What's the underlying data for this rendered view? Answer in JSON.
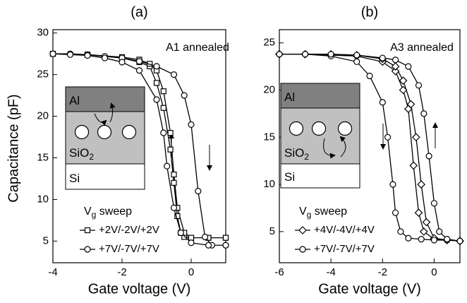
{
  "chart_data": [
    {
      "type": "line",
      "title": "(a)",
      "annotation": "A1 annealed",
      "xlabel": "Gate voltage (V)",
      "ylabel": "Capacitance (pF)",
      "xlim": [
        -4,
        1
      ],
      "ylim": [
        2.4,
        30.4
      ],
      "xticks": [
        -4,
        -2,
        0
      ],
      "yticks": [
        5,
        10,
        15,
        20,
        25,
        30
      ],
      "legend_title": {
        "main": "V",
        "sub": "g",
        "rest": " sweep"
      },
      "inset": {
        "layers": [
          {
            "text": "Al"
          },
          {
            "text": "SiO",
            "sub": "2"
          },
          {
            "text": "Si"
          }
        ]
      },
      "series": [
        {
          "name": "+2V/-2V/+2V",
          "color": "#000000",
          "marker": "square",
          "x": [
            -4,
            -3,
            -2,
            -1.5,
            -1.2,
            -1,
            -0.8,
            -0.6,
            -0.5,
            -0.4,
            -0.3,
            -0.2,
            0,
            0.5,
            1,
            1,
            0.5,
            0,
            -0.2,
            -0.4,
            -0.5,
            -0.6,
            -0.8,
            -1,
            -1.2,
            -1.5,
            -2,
            -3,
            -4
          ],
          "values": [
            27.5,
            27.4,
            27,
            26.5,
            26,
            24,
            21,
            16,
            12,
            8,
            6,
            5.5,
            5.4,
            5.4,
            5.4,
            5.4,
            5.4,
            5.4,
            6,
            9,
            13,
            18,
            23,
            25.5,
            26.3,
            26.8,
            27.1,
            27.4,
            27.5
          ]
        },
        {
          "name": "+7V/-7V/+7V",
          "color": "#000000",
          "marker": "circle",
          "x": [
            -4,
            -3.5,
            -3,
            -2.5,
            -2,
            -1.5,
            -1,
            -0.5,
            -0.2,
            0,
            0.2,
            0.4,
            0.6,
            1,
            1,
            0.5,
            0,
            -0.3,
            -0.5,
            -0.7,
            -0.8,
            -1,
            -1.5,
            -2,
            -2.5,
            -3,
            -3.5,
            -4
          ],
          "values": [
            27.5,
            27.5,
            27.4,
            27.2,
            27,
            26.6,
            26,
            25,
            22.5,
            19,
            11,
            5.5,
            4.5,
            4.5,
            4.5,
            4.5,
            4.8,
            6,
            9,
            14,
            18,
            22,
            25.5,
            26.5,
            27,
            27.3,
            27.4,
            27.5
          ]
        }
      ]
    },
    {
      "type": "line",
      "title": "(b)",
      "annotation": "A3 annealed",
      "xlabel": "Gate voltage (V)",
      "xlim": [
        -6,
        1
      ],
      "ylim": [
        1.7,
        26.4
      ],
      "xticks": [
        -6,
        -4,
        -2,
        0
      ],
      "yticks": [
        5,
        10,
        15,
        20,
        25
      ],
      "legend_title": {
        "main": "V",
        "sub": "g",
        "rest": " sweep"
      },
      "inset": {
        "layers": [
          {
            "text": "Al"
          },
          {
            "text": "SiO",
            "sub": "2"
          },
          {
            "text": "Si"
          }
        ]
      },
      "series": [
        {
          "name": "+4V/-4V/+4V",
          "color": "#000000",
          "marker": "diamond",
          "x": [
            -6,
            -5,
            -4,
            -3,
            -2,
            -1.5,
            -1.2,
            -1,
            -0.8,
            -0.6,
            -0.4,
            0,
            0.5,
            1,
            1,
            0.5,
            0,
            -0.3,
            -0.5,
            -0.7,
            -0.9,
            -1.2,
            -1.5,
            -2,
            -3,
            -4,
            -5,
            -6
          ],
          "values": [
            23.8,
            23.8,
            23.7,
            23.6,
            23,
            22,
            20,
            18,
            12,
            7,
            5,
            4.2,
            4.1,
            4,
            4,
            4.1,
            4.3,
            6,
            10,
            15,
            18.5,
            21,
            22.5,
            23.3,
            23.7,
            23.8,
            23.8,
            23.8
          ]
        },
        {
          "name": "+7V/-7V/+7V",
          "color": "#000000",
          "marker": "circle",
          "x": [
            -6,
            -5,
            -4,
            -3,
            -2.5,
            -2,
            -1.8,
            -1.6,
            -1.5,
            -1.3,
            -1,
            -0.5,
            0,
            0.5,
            1,
            1,
            0.5,
            0.2,
            0,
            -0.2,
            -0.4,
            -0.6,
            -1,
            -1.5,
            -2,
            -3,
            -4,
            -5,
            -6
          ],
          "values": [
            23.8,
            23.8,
            23.6,
            23,
            21.5,
            18.7,
            15,
            10,
            7,
            5,
            4.3,
            4.2,
            4.1,
            4.1,
            4,
            4,
            4.2,
            5,
            8,
            13,
            17.5,
            20.5,
            22.5,
            23.2,
            23.4,
            23.7,
            23.8,
            23.8,
            23.8
          ]
        }
      ]
    }
  ]
}
